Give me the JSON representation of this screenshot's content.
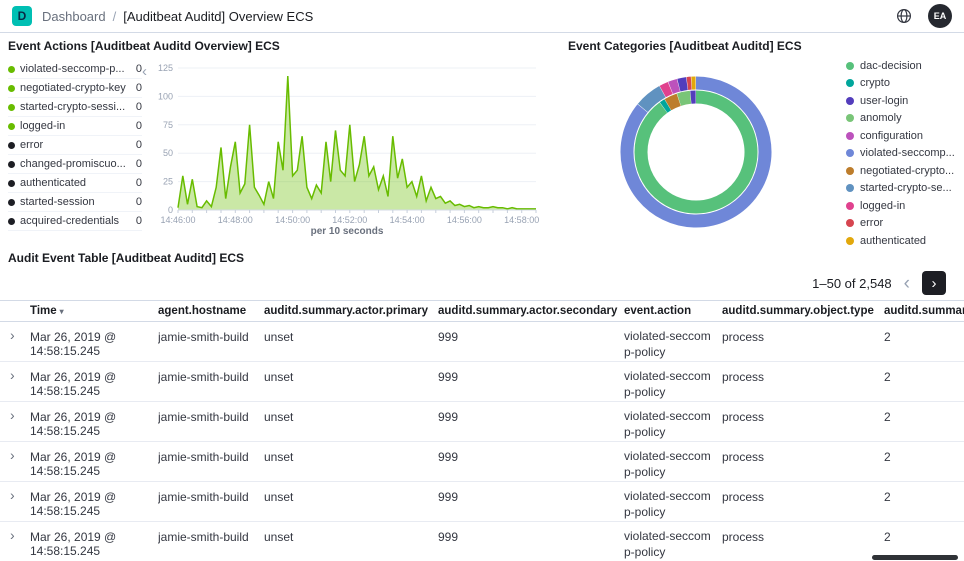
{
  "header": {
    "logo": "D",
    "breadcrumbs": [
      "Dashboard",
      "[Auditbeat Auditd] Overview ECS"
    ],
    "breadcrumb_separator": "/",
    "avatar_initials": "EA"
  },
  "icons": {
    "collapse": "‹",
    "prev": "‹",
    "next": "›",
    "expand": "›",
    "sort": "▾"
  },
  "event_actions": {
    "title": "Event Actions [Auditbeat Auditd Overview] ECS",
    "x_unit_label": "per 10 seconds",
    "legend": [
      {
        "label": "violated-seccomp-p...",
        "value": "0",
        "color": "#68bc00"
      },
      {
        "label": "negotiated-crypto-key",
        "value": "0",
        "color": "#68bc00"
      },
      {
        "label": "started-crypto-sessi...",
        "value": "0",
        "color": "#68bc00"
      },
      {
        "label": "logged-in",
        "value": "0",
        "color": "#68bc00"
      },
      {
        "label": "error",
        "value": "0",
        "color": "#1d1e24"
      },
      {
        "label": "changed-promiscuo...",
        "value": "0",
        "color": "#1d1e24"
      },
      {
        "label": "authenticated",
        "value": "0",
        "color": "#1d1e24"
      },
      {
        "label": "started-session",
        "value": "0",
        "color": "#1d1e24"
      },
      {
        "label": "acquired-credentials",
        "value": "0",
        "color": "#1d1e24"
      }
    ]
  },
  "event_categories": {
    "title": "Event Categories [Auditbeat Auditd] ECS",
    "legend": [
      {
        "label": "dac-decision",
        "color": "#57c17b"
      },
      {
        "label": "crypto",
        "color": "#00a69b"
      },
      {
        "label": "user-login",
        "color": "#533dbc"
      },
      {
        "label": "anomoly",
        "color": "#79c578"
      },
      {
        "label": "configuration",
        "color": "#bc52bc"
      },
      {
        "label": "violated-seccomp...",
        "color": "#6f87d8"
      },
      {
        "label": "negotiated-crypto...",
        "color": "#bd7d2c"
      },
      {
        "label": "started-crypto-se...",
        "color": "#6092c0"
      },
      {
        "label": "logged-in",
        "color": "#e0418e"
      },
      {
        "label": "error",
        "color": "#d64550"
      },
      {
        "label": "authenticated",
        "color": "#e2a80c"
      }
    ]
  },
  "audit_table": {
    "title": "Audit Event Table [Auditbeat Auditd] ECS",
    "pagination_label": "1–50 of 2,548",
    "sorted_column": "Time",
    "columns": [
      "Time",
      "agent.hostname",
      "auditd.summary.actor.primary",
      "auditd.summary.actor.secondary",
      "event.action",
      "auditd.summary.object.type",
      "auditd.summary"
    ],
    "rows": [
      [
        "Mar 26, 2019 @ 14:58:15.245",
        "jamie-smith-build",
        "unset",
        "999",
        "violated-seccomp-policy",
        "process",
        "2"
      ],
      [
        "Mar 26, 2019 @ 14:58:15.245",
        "jamie-smith-build",
        "unset",
        "999",
        "violated-seccomp-policy",
        "process",
        "2"
      ],
      [
        "Mar 26, 2019 @ 14:58:15.245",
        "jamie-smith-build",
        "unset",
        "999",
        "violated-seccomp-policy",
        "process",
        "2"
      ],
      [
        "Mar 26, 2019 @ 14:58:15.245",
        "jamie-smith-build",
        "unset",
        "999",
        "violated-seccomp-policy",
        "process",
        "2"
      ],
      [
        "Mar 26, 2019 @ 14:58:15.245",
        "jamie-smith-build",
        "unset",
        "999",
        "violated-seccomp-policy",
        "process",
        "2"
      ],
      [
        "Mar 26, 2019 @ 14:58:15.245",
        "jamie-smith-build",
        "unset",
        "999",
        "violated-seccomp-policy",
        "process",
        "2"
      ]
    ]
  },
  "chart_data": [
    {
      "type": "area",
      "title": "Event Actions [Auditbeat Auditd Overview] ECS",
      "xlabel": "per 10 seconds",
      "x_interval_seconds": 10,
      "x_ticks": [
        "14:46:00",
        "14:48:00",
        "14:50:00",
        "14:52:00",
        "14:54:00",
        "14:56:00",
        "14:58:00"
      ],
      "ylim": [
        0,
        125
      ],
      "y_ticks": [
        0,
        25,
        50,
        75,
        100,
        125
      ],
      "series_color": "#68bc00",
      "values": [
        2,
        30,
        5,
        27,
        3,
        2,
        8,
        3,
        20,
        55,
        10,
        38,
        60,
        15,
        23,
        75,
        20,
        13,
        5,
        25,
        10,
        60,
        35,
        118,
        30,
        35,
        65,
        20,
        10,
        22,
        15,
        60,
        25,
        70,
        35,
        30,
        75,
        25,
        40,
        65,
        30,
        38,
        18,
        30,
        12,
        65,
        28,
        45,
        20,
        25,
        12,
        30,
        8,
        20,
        10,
        12,
        6,
        8,
        4,
        5,
        3,
        4,
        2,
        3,
        2,
        2,
        3,
        2,
        2,
        1,
        2,
        1,
        1,
        1,
        1,
        1
      ]
    },
    {
      "type": "pie",
      "title": "Event Categories [Auditbeat Auditd] ECS",
      "legend_position": "right",
      "rings": {
        "inner": [
          {
            "label": "dac-decision",
            "value": 90,
            "color": "#57c17b"
          },
          {
            "label": "crypto",
            "value": 1.5,
            "color": "#00a69b"
          },
          {
            "label": "negotiated-crypto-key",
            "value": 3.5,
            "color": "#bd7d2c"
          },
          {
            "label": "anomoly",
            "value": 3.5,
            "color": "#79c578"
          },
          {
            "label": "user-login",
            "value": 1.5,
            "color": "#533dbc"
          }
        ],
        "outer": [
          {
            "label": "violated-seccomp-policy",
            "value": 86,
            "color": "#6f87d8"
          },
          {
            "label": "started-crypto-session",
            "value": 6,
            "color": "#6092c0"
          },
          {
            "label": "logged-in",
            "value": 2,
            "color": "#e0418e"
          },
          {
            "label": "configuration",
            "value": 2,
            "color": "#bc52bc"
          },
          {
            "label": "user-login",
            "value": 2,
            "color": "#533dbc"
          },
          {
            "label": "error",
            "value": 1,
            "color": "#d64550"
          },
          {
            "label": "authenticated",
            "value": 1,
            "color": "#e2a80c"
          }
        ]
      }
    }
  ]
}
